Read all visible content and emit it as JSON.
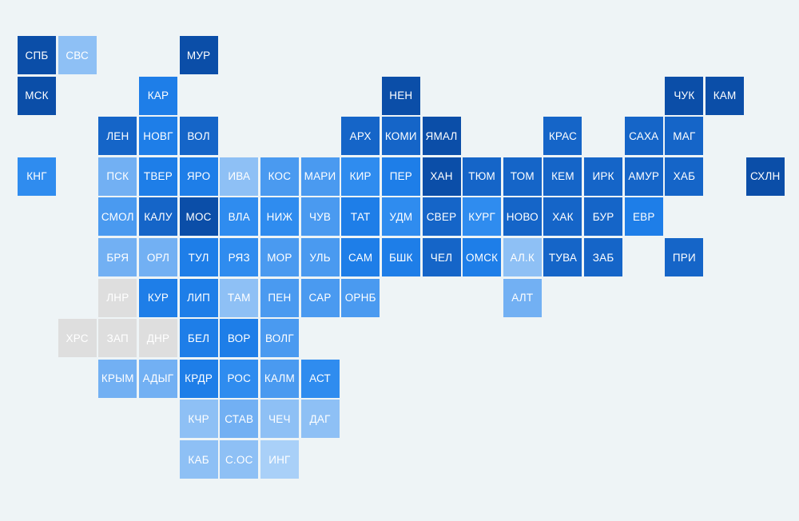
{
  "map": {
    "rows": [
      [
        {
          "label": "СПБ",
          "color": "#0b4ea8"
        },
        {
          "label": "СВС",
          "color": "#8ec0f5"
        },
        null,
        null,
        {
          "label": "МУР",
          "color": "#0b4ea8"
        }
      ],
      [
        {
          "label": "МСК",
          "color": "#0b4ea8"
        },
        null,
        null,
        {
          "label": "КАР",
          "color": "#1e7ee8"
        },
        null,
        null,
        null,
        null,
        null,
        {
          "label": "НЕН",
          "color": "#0b4ea8"
        },
        null,
        null,
        null,
        null,
        null,
        null,
        {
          "label": "ЧУК",
          "color": "#0b4ea8"
        },
        {
          "label": "КАМ",
          "color": "#0b4ea8"
        }
      ],
      [
        null,
        null,
        {
          "label": "ЛЕН",
          "color": "#1565c8"
        },
        {
          "label": "НОВГ",
          "color": "#1e7ee8"
        },
        {
          "label": "ВОЛ",
          "color": "#1565c8"
        },
        null,
        null,
        null,
        {
          "label": "АРХ",
          "color": "#1565c8"
        },
        {
          "label": "КОМИ",
          "color": "#1565c8"
        },
        {
          "label": "ЯМАЛ",
          "color": "#0b4ea8"
        },
        null,
        null,
        {
          "label": "КРАС",
          "color": "#1565c8"
        },
        null,
        {
          "label": "САХА",
          "color": "#1565c8"
        },
        {
          "label": "МАГ",
          "color": "#1565c8"
        }
      ],
      [
        {
          "label": "КНГ",
          "color": "#2f8cef"
        },
        null,
        {
          "label": "ПСК",
          "color": "#72b0f3"
        },
        {
          "label": "ТВЕР",
          "color": "#1e7ee8"
        },
        {
          "label": "ЯРО",
          "color": "#1e7ee8"
        },
        {
          "label": "ИВА",
          "color": "#8ec0f5"
        },
        {
          "label": "КОС",
          "color": "#4a9af0"
        },
        {
          "label": "МАРИ",
          "color": "#4a9af0"
        },
        {
          "label": "КИР",
          "color": "#2f8cef"
        },
        {
          "label": "ПЕР",
          "color": "#1e7ee8"
        },
        {
          "label": "ХАН",
          "color": "#0b4ea8"
        },
        {
          "label": "ТЮМ",
          "color": "#1565c8"
        },
        {
          "label": "ТОМ",
          "color": "#1565c8"
        },
        {
          "label": "КЕМ",
          "color": "#1565c8"
        },
        {
          "label": "ИРК",
          "color": "#1565c8"
        },
        {
          "label": "АМУР",
          "color": "#1565c8"
        },
        {
          "label": "ХАБ",
          "color": "#1565c8"
        },
        null,
        {
          "label": "СХЛН",
          "color": "#0b4ea8"
        }
      ],
      [
        null,
        null,
        {
          "label": "СМОЛ",
          "color": "#4a9af0"
        },
        {
          "label": "КАЛУ",
          "color": "#1565c8"
        },
        {
          "label": "МОС",
          "color": "#0b4ea8"
        },
        {
          "label": "ВЛА",
          "color": "#2f8cef"
        },
        {
          "label": "НИЖ",
          "color": "#2f8cef"
        },
        {
          "label": "ЧУВ",
          "color": "#4a9af0"
        },
        {
          "label": "ТАТ",
          "color": "#1e7ee8"
        },
        {
          "label": "УДМ",
          "color": "#2f8cef"
        },
        {
          "label": "СВЕР",
          "color": "#1565c8"
        },
        {
          "label": "КУРГ",
          "color": "#2f8cef"
        },
        {
          "label": "НОВО",
          "color": "#1565c8"
        },
        {
          "label": "ХАК",
          "color": "#1565c8"
        },
        {
          "label": "БУР",
          "color": "#1565c8"
        },
        {
          "label": "ЕВР",
          "color": "#1e7ee8"
        }
      ],
      [
        null,
        null,
        {
          "label": "БРЯ",
          "color": "#72b0f3"
        },
        {
          "label": "ОРЛ",
          "color": "#72b0f3"
        },
        {
          "label": "ТУЛ",
          "color": "#1e7ee8"
        },
        {
          "label": "РЯЗ",
          "color": "#2f8cef"
        },
        {
          "label": "МОР",
          "color": "#4a9af0"
        },
        {
          "label": "УЛЬ",
          "color": "#4a9af0"
        },
        {
          "label": "САМ",
          "color": "#1e7ee8"
        },
        {
          "label": "БШК",
          "color": "#1e7ee8"
        },
        {
          "label": "ЧЕЛ",
          "color": "#1565c8"
        },
        {
          "label": "ОМСК",
          "color": "#1e7ee8"
        },
        {
          "label": "АЛ.К",
          "color": "#8ec0f5"
        },
        {
          "label": "ТУВА",
          "color": "#1565c8"
        },
        {
          "label": "ЗАБ",
          "color": "#1565c8"
        },
        null,
        {
          "label": "ПРИ",
          "color": "#1565c8"
        }
      ],
      [
        null,
        null,
        {
          "label": "ЛНР",
          "color": "#dedede"
        },
        {
          "label": "КУР",
          "color": "#1e7ee8"
        },
        {
          "label": "ЛИП",
          "color": "#1e7ee8"
        },
        {
          "label": "ТАМ",
          "color": "#8ec0f5"
        },
        {
          "label": "ПЕН",
          "color": "#4a9af0"
        },
        {
          "label": "САР",
          "color": "#4a9af0"
        },
        {
          "label": "ОРНБ",
          "color": "#4a9af0"
        },
        null,
        null,
        null,
        {
          "label": "АЛТ",
          "color": "#72b0f3"
        }
      ],
      [
        null,
        {
          "label": "ХРС",
          "color": "#dedede"
        },
        {
          "label": "ЗАП",
          "color": "#dedede"
        },
        {
          "label": "ДНР",
          "color": "#dedede"
        },
        {
          "label": "БЕЛ",
          "color": "#1e7ee8"
        },
        {
          "label": "ВОР",
          "color": "#1e7ee8"
        },
        {
          "label": "ВОЛГ",
          "color": "#4a9af0"
        }
      ],
      [
        null,
        null,
        {
          "label": "КРЫМ",
          "color": "#72b0f3"
        },
        {
          "label": "АДЫГ",
          "color": "#72b0f3"
        },
        {
          "label": "КРДР",
          "color": "#1e7ee8"
        },
        {
          "label": "РОС",
          "color": "#2f8cef"
        },
        {
          "label": "КАЛМ",
          "color": "#4a9af0"
        },
        {
          "label": "АСТ",
          "color": "#2f8cef"
        }
      ],
      [
        null,
        null,
        null,
        null,
        {
          "label": "КЧР",
          "color": "#8ec0f5"
        },
        {
          "label": "СТАВ",
          "color": "#72b0f3"
        },
        {
          "label": "ЧЕЧ",
          "color": "#8ec0f5"
        },
        {
          "label": "ДАГ",
          "color": "#8ec0f5"
        }
      ],
      [
        null,
        null,
        null,
        null,
        {
          "label": "КАБ",
          "color": "#8ec0f5"
        },
        {
          "label": "С.ОС",
          "color": "#8ec0f5"
        },
        {
          "label": "ИНГ",
          "color": "#a9d0f8"
        }
      ]
    ]
  }
}
